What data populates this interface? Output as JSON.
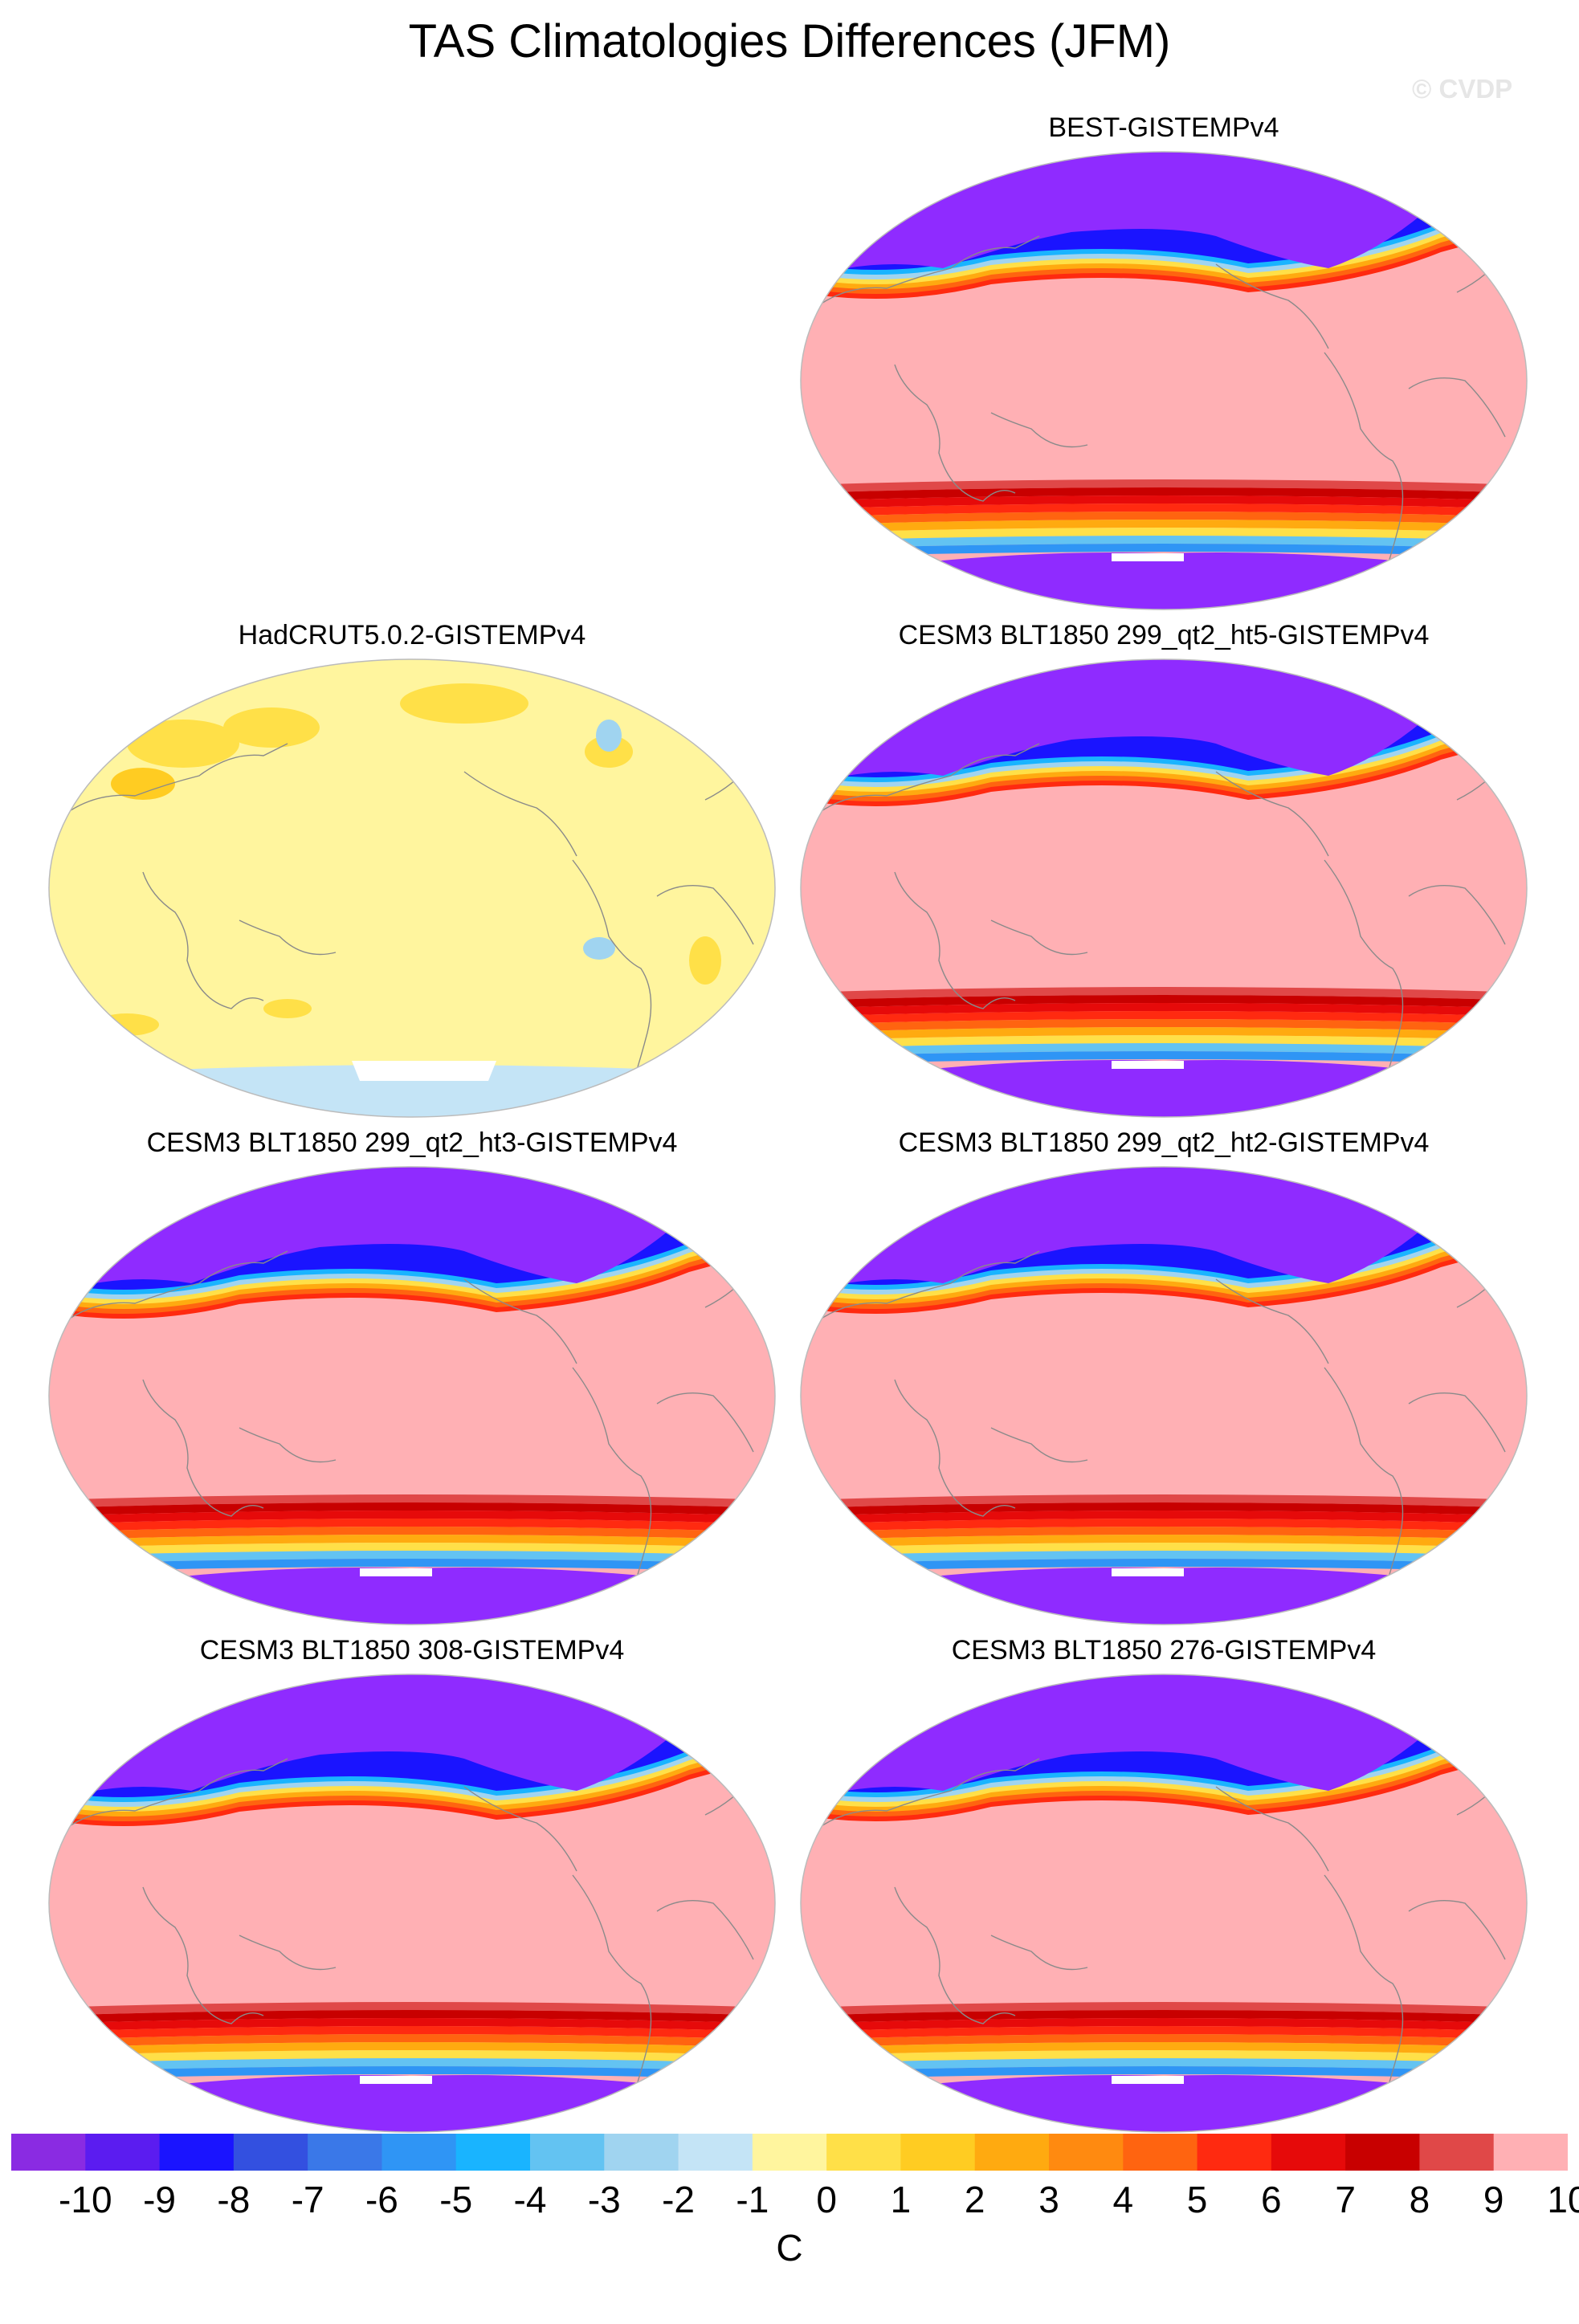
{
  "figure": {
    "title": "TAS Climatologies Differences (JFM)",
    "copyright": "© CVDP"
  },
  "panels": [
    {
      "label": "BEST-GISTEMPv4",
      "pattern": "strong",
      "land_color": "#8f2bff"
    },
    {
      "label": "HadCRUT5.0.2-GISTEMPv4",
      "pattern": "weak",
      "land_color": "#fff59e"
    },
    {
      "label": "CESM3 BLT1850 299_qt2_ht5-GISTEMPv4",
      "pattern": "strong",
      "land_color": "#8f2bff"
    },
    {
      "label": "CESM3 BLT1850 299_qt2_ht3-GISTEMPv4",
      "pattern": "strong",
      "land_color": "#8f2bff"
    },
    {
      "label": "CESM3 BLT1850 299_qt2_ht2-GISTEMPv4",
      "pattern": "strong",
      "land_color": "#8f2bff"
    },
    {
      "label": "CESM3 BLT1850 308-GISTEMPv4",
      "pattern": "strong",
      "land_color": "#8f2bff"
    },
    {
      "label": "CESM3 BLT1850 276-GISTEMPv4",
      "pattern": "strong",
      "land_color": "#8f2bff"
    }
  ],
  "colorbar": {
    "labels": [
      "-10",
      "-9",
      "-8",
      "-7",
      "-6",
      "-5",
      "-4",
      "-3",
      "-2",
      "-1",
      "0",
      "1",
      "2",
      "3",
      "4",
      "5",
      "6",
      "7",
      "8",
      "9",
      "10"
    ],
    "units": "C",
    "colors": [
      "#8a2be2",
      "#5b1cf0",
      "#1a14ff",
      "#3350e0",
      "#3a78e8",
      "#2f95f5",
      "#19b4ff",
      "#63c3f2",
      "#a0d4f0",
      "#c4e4f6",
      "#fff59e",
      "#ffe048",
      "#ffcc22",
      "#ffaa10",
      "#ff8a10",
      "#ff6410",
      "#ff2a10",
      "#e60a0a",
      "#c80000",
      "#e04848",
      "#ffb0b4"
    ]
  }
}
